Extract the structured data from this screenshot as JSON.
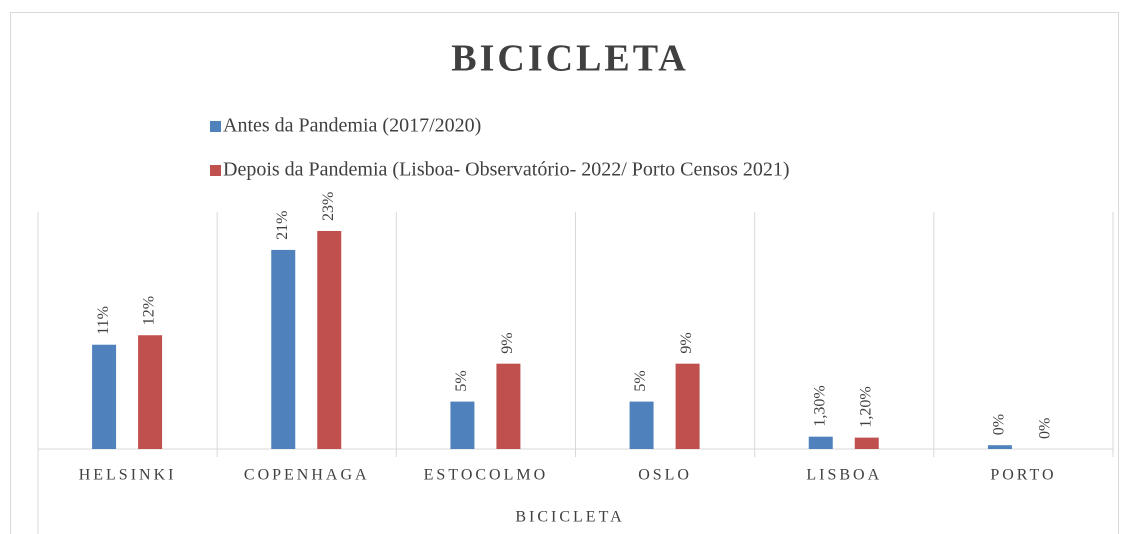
{
  "chart_data": {
    "type": "bar",
    "title": "BICICLETA",
    "x_label": "BICICLETA",
    "categories": [
      "HELSINKI",
      "COPENHAGA",
      "ESTOCOLMO",
      "OSLO",
      "LISBOA",
      "PORTO"
    ],
    "series": [
      {
        "name": "Antes da Pandemia (2017/2020)",
        "color": "#4f81bd",
        "values": [
          11,
          21,
          5,
          5,
          1.3,
          0.4
        ],
        "value_labels": [
          "11%",
          "21%",
          "5%",
          "5%",
          "1,30%",
          "0%"
        ]
      },
      {
        "name": "Depois da Pandemia (Lisboa- Observatório- 2022/ Porto Censos 2021)",
        "color": "#c0504d",
        "values": [
          12,
          23,
          9,
          9,
          1.2,
          0
        ],
        "value_labels": [
          "12%",
          "23%",
          "9%",
          "9%",
          "1,20%",
          "0%"
        ]
      }
    ],
    "ylim": [
      0,
      25
    ],
    "legend": "top"
  }
}
